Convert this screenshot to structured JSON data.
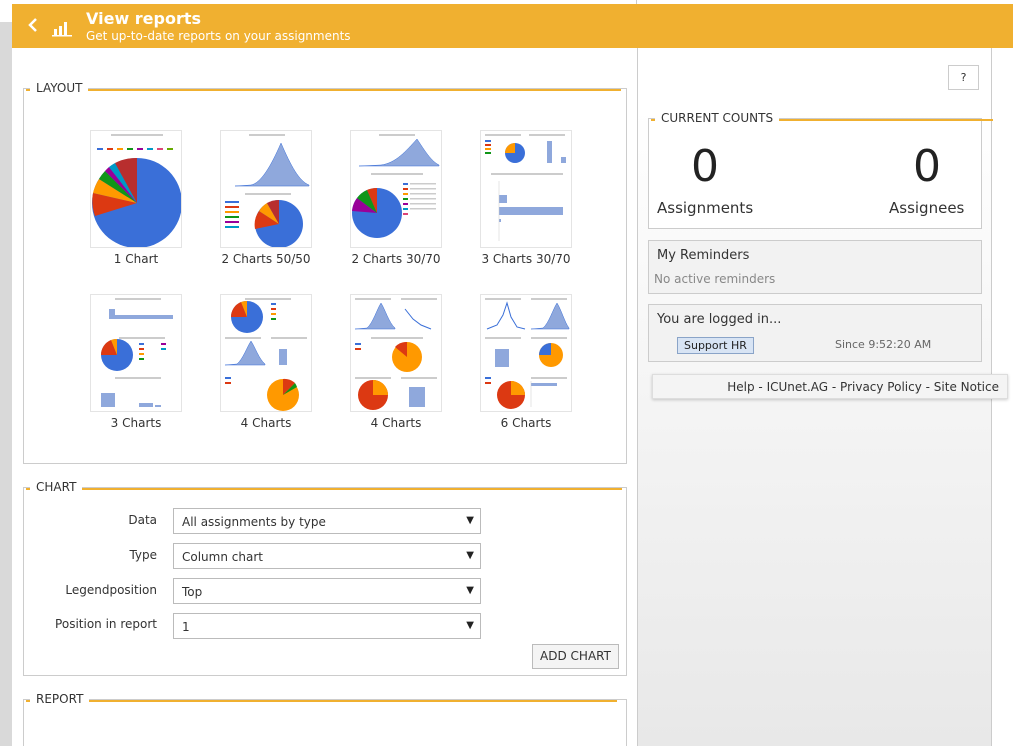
{
  "header": {
    "title": "View reports",
    "subtitle": "Get up-to-date reports on your assignments"
  },
  "help_label": "?",
  "layout": {
    "legend": "LAYOUT",
    "options": [
      {
        "label": "1 Chart"
      },
      {
        "label": "2 Charts 50/50"
      },
      {
        "label": "2 Charts 30/70"
      },
      {
        "label": "3 Charts 30/70"
      },
      {
        "label": "3 Charts"
      },
      {
        "label": "4 Charts"
      },
      {
        "label": "4 Charts"
      },
      {
        "label": "6 Charts"
      }
    ]
  },
  "chart": {
    "legend": "CHART",
    "fields": [
      {
        "label": "Data",
        "value": "All assignments by type"
      },
      {
        "label": "Type",
        "value": "Column chart"
      },
      {
        "label": "Legendposition",
        "value": "Top"
      },
      {
        "label": "Position in report",
        "value": "1"
      }
    ],
    "add_label": "ADD CHART"
  },
  "report": {
    "legend": "REPORT"
  },
  "counts": {
    "legend": "CURRENT COUNTS",
    "assignments_value": "0",
    "assignments_label": "Assignments",
    "assignees_value": "0",
    "assignees_label": "Assignees"
  },
  "reminders": {
    "title": "My Reminders",
    "text": "No active reminders"
  },
  "login": {
    "title": "You are logged in...",
    "role": "Support HR",
    "since": "Since 9:52:20 AM"
  },
  "footer": {
    "links": [
      "Help",
      "ICUnet.AG",
      "Privacy Policy",
      "Site Notice"
    ],
    "separator": " - "
  },
  "colors": {
    "accent": "#f0b030",
    "pie_blue": "#3a6fd8",
    "pie_orange": "#ff9900",
    "pie_red": "#dc3912",
    "area_blue": "#8fa8dc"
  }
}
